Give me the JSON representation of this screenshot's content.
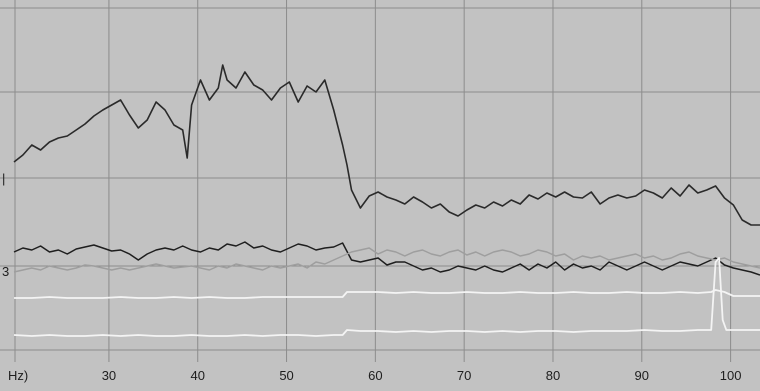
{
  "chart_data": {
    "type": "line",
    "title": "",
    "xlabel": "Hz)",
    "ylabel": "",
    "xlim": [
      21,
      105
    ],
    "x_ticks": [
      30,
      40,
      50,
      60,
      70,
      80,
      90,
      100
    ],
    "x_tick_labels": [
      "30",
      "40",
      "50",
      "60",
      "70",
      "80",
      "90",
      "100"
    ],
    "left_edge_marks": [
      "|",
      "3"
    ],
    "grid": true,
    "series": [
      {
        "color": "#2a2a2a",
        "width": 1.6,
        "x": [
          21.0,
          22.0,
          23.0,
          24.0,
          25.0,
          26.0,
          27.0,
          28.0,
          29.0,
          30.0,
          31.0,
          32.0,
          33.0,
          34.0,
          35.0,
          36.0,
          37.0,
          38.0,
          39.0,
          40.0,
          40.5,
          41.0,
          42.0,
          43.0,
          44.0,
          44.5,
          45.0,
          46.0,
          47.0,
          48.0,
          49.0,
          50.0,
          51.0,
          52.0,
          53.0,
          54.0,
          55.0,
          56.0,
          57.0,
          58.0,
          58.5,
          59.0,
          60.0,
          61.0,
          62.0,
          63.0,
          64.0,
          65.0,
          66.0,
          67.0,
          68.0,
          69.0,
          70.0,
          71.0,
          72.0,
          73.0,
          74.0,
          75.0,
          76.0,
          77.0,
          78.0,
          79.0,
          80.0,
          81.0,
          82.0,
          83.0,
          84.0,
          85.0,
          86.0,
          87.0,
          88.0,
          89.0,
          90.0,
          91.0,
          92.0,
          93.0,
          94.0,
          95.0,
          96.0,
          97.0,
          98.0,
          99.0,
          100.0,
          101.0,
          102.0,
          103.0,
          104.0,
          105.0
        ],
        "y": [
          162,
          155,
          145,
          150,
          142,
          138,
          136,
          130,
          124,
          116,
          110,
          105,
          100,
          115,
          128,
          120,
          102,
          110,
          125,
          130,
          158,
          105,
          80,
          100,
          88,
          65,
          80,
          88,
          72,
          85,
          90,
          100,
          88,
          82,
          102,
          86,
          92,
          80,
          110,
          145,
          165,
          190,
          208,
          196,
          192,
          197,
          200,
          204,
          197,
          202,
          208,
          204,
          212,
          216,
          210,
          205,
          208,
          202,
          206,
          200,
          204,
          195,
          199,
          193,
          197,
          192,
          197,
          198,
          192,
          204,
          198,
          195,
          198,
          196,
          190,
          193,
          198,
          188,
          196,
          185,
          193,
          190,
          186,
          198,
          205,
          220,
          225,
          225
        ]
      },
      {
        "color": "#1e1e1e",
        "width": 1.5,
        "x": [
          21.0,
          22.0,
          23.0,
          24.0,
          25.0,
          26.0,
          27.0,
          28.0,
          29.0,
          30.0,
          31.0,
          32.0,
          33.0,
          34.0,
          35.0,
          36.0,
          37.0,
          38.0,
          39.0,
          40.0,
          41.0,
          42.0,
          43.0,
          44.0,
          45.0,
          46.0,
          47.0,
          48.0,
          49.0,
          50.0,
          51.0,
          52.0,
          53.0,
          54.0,
          55.0,
          56.0,
          57.0,
          58.0,
          59.0,
          60.0,
          61.0,
          62.0,
          63.0,
          64.0,
          65.0,
          66.0,
          67.0,
          68.0,
          69.0,
          70.0,
          71.0,
          72.0,
          73.0,
          74.0,
          75.0,
          76.0,
          77.0,
          78.0,
          79.0,
          80.0,
          81.0,
          82.0,
          83.0,
          84.0,
          85.0,
          86.0,
          87.0,
          88.0,
          89.0,
          90.0,
          91.0,
          92.0,
          93.0,
          94.0,
          95.0,
          96.0,
          97.0,
          98.0,
          99.0,
          100.0,
          101.0,
          102.0,
          103.0,
          104.0,
          105.0
        ],
        "y": [
          252,
          248,
          250,
          246,
          252,
          250,
          254,
          249,
          247,
          245,
          248,
          251,
          250,
          254,
          260,
          254,
          250,
          248,
          250,
          246,
          250,
          252,
          248,
          250,
          244,
          246,
          242,
          248,
          246,
          250,
          252,
          248,
          244,
          246,
          250,
          248,
          247,
          243,
          260,
          262,
          260,
          258,
          265,
          262,
          262,
          266,
          270,
          268,
          272,
          270,
          266,
          268,
          270,
          266,
          270,
          272,
          268,
          264,
          270,
          264,
          268,
          262,
          270,
          264,
          268,
          266,
          270,
          262,
          266,
          270,
          266,
          262,
          266,
          270,
          266,
          262,
          264,
          266,
          262,
          258,
          265,
          268,
          270,
          272,
          275
        ]
      },
      {
        "color": "#9e9e9e",
        "width": 1.5,
        "x": [
          21.0,
          22.0,
          23.0,
          24.0,
          25.0,
          26.0,
          27.0,
          28.0,
          29.0,
          30.0,
          31.0,
          32.0,
          33.0,
          34.0,
          35.0,
          36.0,
          37.0,
          38.0,
          39.0,
          40.0,
          41.0,
          42.0,
          43.0,
          44.0,
          45.0,
          46.0,
          47.0,
          48.0,
          49.0,
          50.0,
          51.0,
          52.0,
          53.0,
          54.0,
          55.0,
          56.0,
          57.0,
          58.0,
          59.0,
          60.0,
          61.0,
          62.0,
          63.0,
          64.0,
          65.0,
          66.0,
          67.0,
          68.0,
          69.0,
          70.0,
          71.0,
          72.0,
          73.0,
          74.0,
          75.0,
          76.0,
          77.0,
          78.0,
          79.0,
          80.0,
          81.0,
          82.0,
          83.0,
          84.0,
          85.0,
          86.0,
          87.0,
          88.0,
          89.0,
          90.0,
          91.0,
          92.0,
          93.0,
          94.0,
          95.0,
          96.0,
          97.0,
          98.0,
          99.0,
          100.0,
          101.0,
          102.0,
          103.0,
          104.0,
          105.0
        ],
        "y": [
          272,
          270,
          268,
          270,
          266,
          268,
          270,
          268,
          265,
          266,
          268,
          270,
          268,
          270,
          268,
          266,
          264,
          266,
          268,
          267,
          266,
          268,
          270,
          266,
          268,
          264,
          266,
          268,
          270,
          266,
          268,
          266,
          264,
          268,
          262,
          264,
          260,
          256,
          252,
          250,
          248,
          254,
          250,
          252,
          256,
          252,
          250,
          254,
          256,
          252,
          250,
          255,
          252,
          256,
          252,
          250,
          252,
          256,
          254,
          250,
          252,
          256,
          254,
          260,
          256,
          258,
          256,
          260,
          258,
          256,
          254,
          258,
          256,
          260,
          258,
          254,
          252,
          256,
          258,
          260,
          258,
          262,
          264,
          266,
          268
        ]
      },
      {
        "color": "#f4f4f4",
        "width": 1.8,
        "x": [
          21.0,
          23.0,
          25.0,
          27.0,
          29.0,
          31.0,
          33.0,
          35.0,
          37.0,
          39.0,
          41.0,
          43.0,
          45.0,
          47.0,
          49.0,
          51.0,
          53.0,
          55.0,
          57.0,
          58.0,
          58.5,
          60.0,
          62.0,
          64.0,
          66.0,
          68.0,
          70.0,
          72.0,
          74.0,
          76.0,
          78.0,
          80.0,
          82.0,
          84.0,
          86.0,
          88.0,
          90.0,
          92.0,
          94.0,
          96.0,
          98.0,
          99.5,
          100.0,
          101.0,
          102.0,
          104.0,
          105.0
        ],
        "y": [
          298,
          298,
          297,
          298,
          298,
          298,
          297,
          298,
          298,
          297,
          298,
          297,
          298,
          298,
          297,
          297,
          297,
          297,
          297,
          297,
          292,
          292,
          292,
          293,
          292,
          293,
          293,
          292,
          293,
          293,
          292,
          293,
          293,
          292,
          293,
          293,
          292,
          293,
          293,
          292,
          293,
          292,
          290,
          292,
          296,
          296,
          296
        ]
      },
      {
        "color": "#f4f4f4",
        "width": 1.8,
        "x": [
          21.0,
          23.0,
          25.0,
          27.0,
          29.0,
          31.0,
          33.0,
          35.0,
          37.0,
          39.0,
          41.0,
          43.0,
          45.0,
          47.0,
          49.0,
          51.0,
          53.0,
          55.0,
          57.0,
          58.0,
          58.5,
          60.0,
          62.0,
          64.0,
          66.0,
          68.0,
          70.0,
          72.0,
          74.0,
          76.0,
          78.0,
          80.0,
          82.0,
          84.0,
          86.0,
          88.0,
          90.0,
          92.0,
          94.0,
          96.0,
          98.0,
          99.5,
          100.0,
          100.4,
          100.8,
          101.2,
          102.0,
          104.0,
          105.0
        ],
        "y": [
          335,
          336,
          335,
          336,
          336,
          335,
          336,
          335,
          336,
          336,
          335,
          336,
          336,
          335,
          336,
          335,
          335,
          336,
          335,
          335,
          330,
          331,
          331,
          332,
          331,
          332,
          331,
          331,
          332,
          331,
          332,
          331,
          331,
          332,
          331,
          331,
          331,
          330,
          331,
          331,
          330,
          330,
          262,
          258,
          320,
          330,
          330,
          330,
          330
        ]
      }
    ]
  }
}
